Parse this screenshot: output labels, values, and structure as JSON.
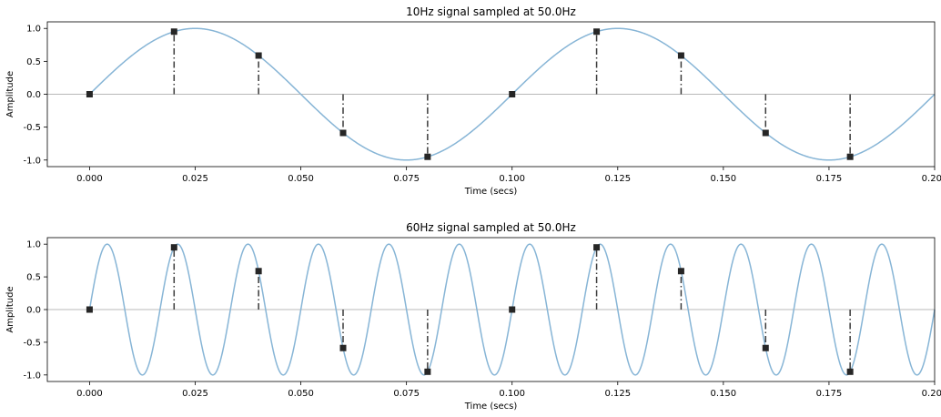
{
  "chart_data": [
    {
      "type": "line",
      "title": "10Hz signal sampled at 50.0Hz",
      "xlabel": "Time (secs)",
      "ylabel": "Amplitude",
      "xlim": [
        -0.01,
        0.2
      ],
      "ylim": [
        -1.1,
        1.1
      ],
      "xticks": [
        "0.000",
        "0.025",
        "0.050",
        "0.075",
        "0.100",
        "0.125",
        "0.150",
        "0.175",
        "0.200"
      ],
      "yticks": [
        "1.0",
        "0.5",
        "0.0",
        "-0.5",
        "-1.0"
      ],
      "grid": false,
      "series": [
        {
          "kind": "continuous",
          "frequency_hz": 10,
          "x_start": 0.0,
          "x_end": 0.2,
          "color": "#87b5d6"
        },
        {
          "kind": "samples",
          "sample_rate_hz": 50.0,
          "color": "#262626",
          "stem_color": "#3a3a3a",
          "x": [
            0.0,
            0.02,
            0.04,
            0.06,
            0.08,
            0.1,
            0.12,
            0.14,
            0.16,
            0.18
          ],
          "y": [
            0.0,
            0.951,
            0.588,
            -0.588,
            -0.951,
            0.0,
            0.951,
            0.588,
            -0.588,
            -0.951
          ]
        }
      ],
      "baseline_color": "#b8b8b8"
    },
    {
      "type": "line",
      "title": "60Hz signal sampled at 50.0Hz",
      "xlabel": "Time (secs)",
      "ylabel": "Amplitude",
      "xlim": [
        -0.01,
        0.2
      ],
      "ylim": [
        -1.1,
        1.1
      ],
      "xticks": [
        "0.000",
        "0.025",
        "0.050",
        "0.075",
        "0.100",
        "0.125",
        "0.150",
        "0.175",
        "0.200"
      ],
      "yticks": [
        "1.0",
        "0.5",
        "0.0",
        "-0.5",
        "-1.0"
      ],
      "grid": false,
      "series": [
        {
          "kind": "continuous",
          "frequency_hz": 60,
          "x_start": 0.0,
          "x_end": 0.2,
          "color": "#87b5d6"
        },
        {
          "kind": "samples",
          "sample_rate_hz": 50.0,
          "color": "#262626",
          "stem_color": "#3a3a3a",
          "x": [
            0.0,
            0.02,
            0.04,
            0.06,
            0.08,
            0.1,
            0.12,
            0.14,
            0.16,
            0.18
          ],
          "y": [
            0.0,
            0.951,
            0.588,
            -0.588,
            -0.951,
            0.0,
            0.951,
            0.588,
            -0.588,
            -0.951
          ]
        }
      ],
      "baseline_color": "#b8b8b8"
    }
  ]
}
